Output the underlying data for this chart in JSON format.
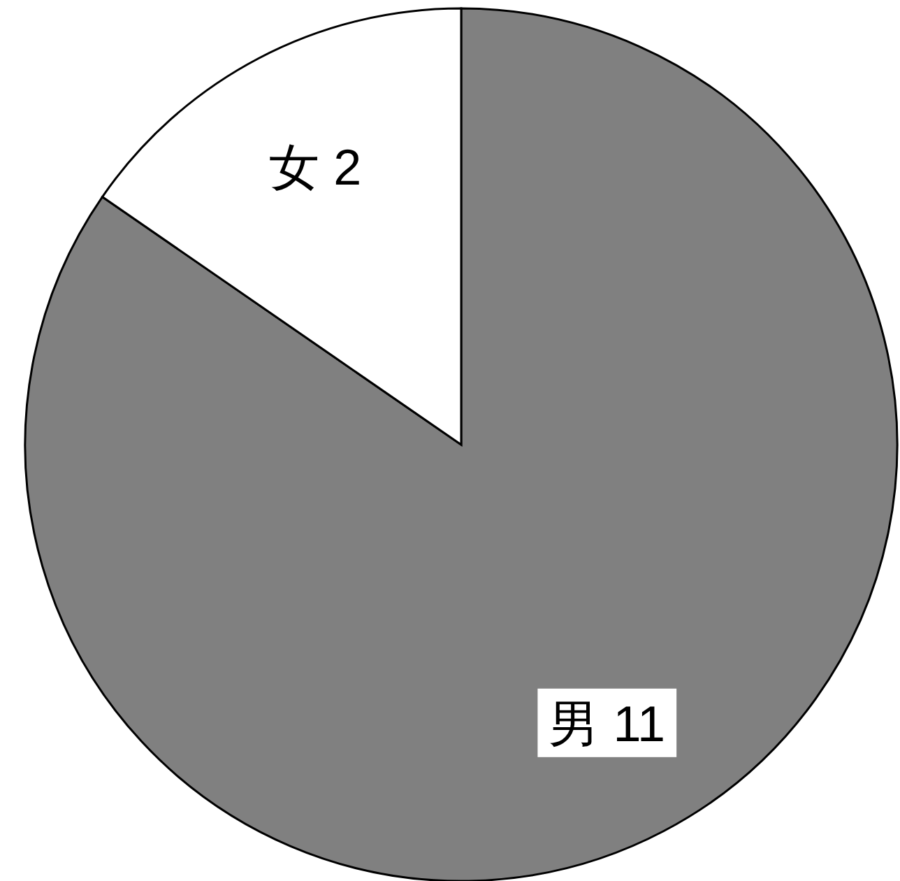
{
  "chart_data": {
    "type": "pie",
    "categories": [
      "男",
      "女"
    ],
    "values": [
      11,
      2
    ],
    "colors": [
      "#808080",
      "#ffffff"
    ],
    "data_labels": true
  }
}
